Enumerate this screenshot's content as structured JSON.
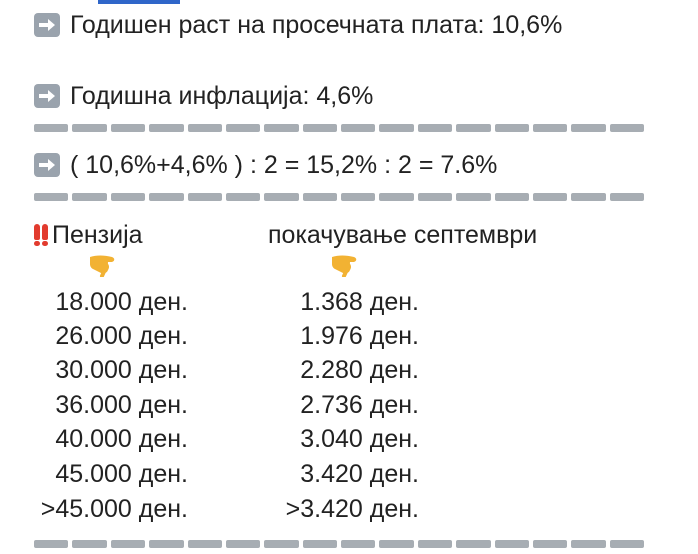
{
  "lines": {
    "growth": "Годишен раст на просечната плата: 10,6%",
    "inflation": "Годишна инфлација: 4,6%",
    "formula": "( 10,6%+4,6% ) : 2  = 15,2% : 2  =  7.6%"
  },
  "table": {
    "header_pension": "Пензија",
    "header_increase": "покачување септември",
    "rows": [
      {
        "pension": "18.000 ден.",
        "increase": "1.368 ден."
      },
      {
        "pension": "26.000 ден.",
        "increase": "1.976 ден."
      },
      {
        "pension": "30.000 ден.",
        "increase": "2.280 ден."
      },
      {
        "pension": "36.000 ден.",
        "increase": "2.736 ден."
      },
      {
        "pension": "40.000 ден.",
        "increase": "3.040 ден."
      },
      {
        "pension": "45.000 ден.",
        "increase": "3.420 ден."
      },
      {
        "pension": ">45.000 ден.",
        "increase": ">3.420 ден."
      }
    ]
  },
  "icons": {
    "arrow": "right-arrow-icon",
    "exclamation": "double-exclamation-icon",
    "pointer": "pointing-hand-icon"
  },
  "colors": {
    "text": "#222222",
    "arrow_bg": "#9aa3ad",
    "dash": "#a7adb3",
    "exclamation": "#e23b2e",
    "hand": "#f2b233"
  }
}
